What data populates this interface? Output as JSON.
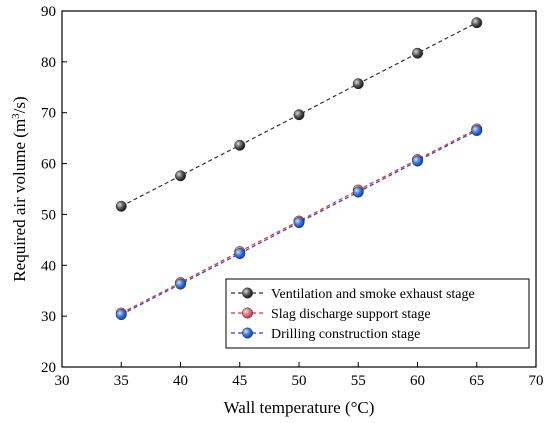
{
  "chart_data": {
    "type": "line",
    "xlabel": "Wall temperature (°C)",
    "ylabel_main": "Required air volume (m",
    "ylabel_sup": "3",
    "ylabel_end": "/s)",
    "xlim": [
      30,
      70
    ],
    "ylim": [
      20,
      90
    ],
    "xticks": [
      "30",
      "35",
      "40",
      "45",
      "50",
      "55",
      "60",
      "65",
      "70"
    ],
    "yticks": [
      "20",
      "30",
      "40",
      "50",
      "60",
      "70",
      "80",
      "90"
    ],
    "x": [
      35,
      40,
      45,
      50,
      55,
      60,
      65
    ],
    "legend_position": "bottom-right",
    "grid": false,
    "series": [
      {
        "name": "Ventilation and smoke exhaust stage",
        "values": [
          51.6,
          57.6,
          63.6,
          69.6,
          75.7,
          81.7,
          87.7
        ],
        "color": "#555555",
        "line_color": "#333333"
      },
      {
        "name": "Slag discharge support stage",
        "values": [
          30.6,
          36.6,
          42.7,
          48.7,
          54.8,
          60.8,
          66.8
        ],
        "color": "#e07a8a",
        "line_color": "#e03030"
      },
      {
        "name": "Drilling construction stage",
        "values": [
          30.3,
          36.3,
          42.3,
          48.4,
          54.4,
          60.5,
          66.5
        ],
        "color": "#3a7fe8",
        "line_color": "#2040e0"
      }
    ]
  }
}
